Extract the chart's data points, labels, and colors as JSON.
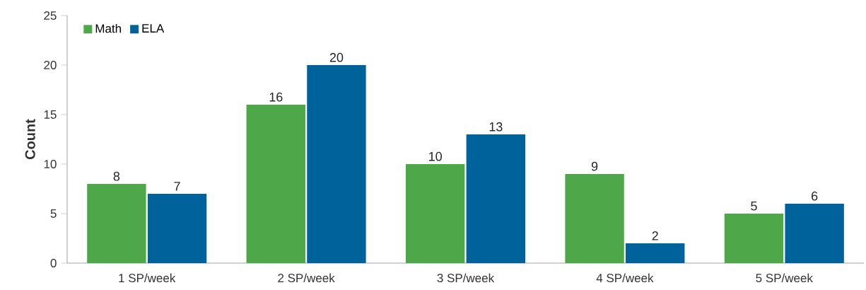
{
  "chart_data": {
    "type": "bar",
    "ylabel": "Count",
    "categories": [
      "1 SP/week",
      "2 SP/week",
      "3 SP/week",
      "4 SP/week",
      "5 SP/week"
    ],
    "series": [
      {
        "name": "Math",
        "color": "#4ea84a",
        "values": [
          8,
          16,
          10,
          9,
          5
        ]
      },
      {
        "name": "ELA",
        "color": "#00629b",
        "values": [
          7,
          20,
          13,
          2,
          6
        ]
      }
    ],
    "ylim": [
      0,
      25
    ],
    "yticks": [
      0,
      5,
      10,
      15,
      20,
      25
    ],
    "data_labels": true,
    "legend": "top left",
    "grid": false
  }
}
